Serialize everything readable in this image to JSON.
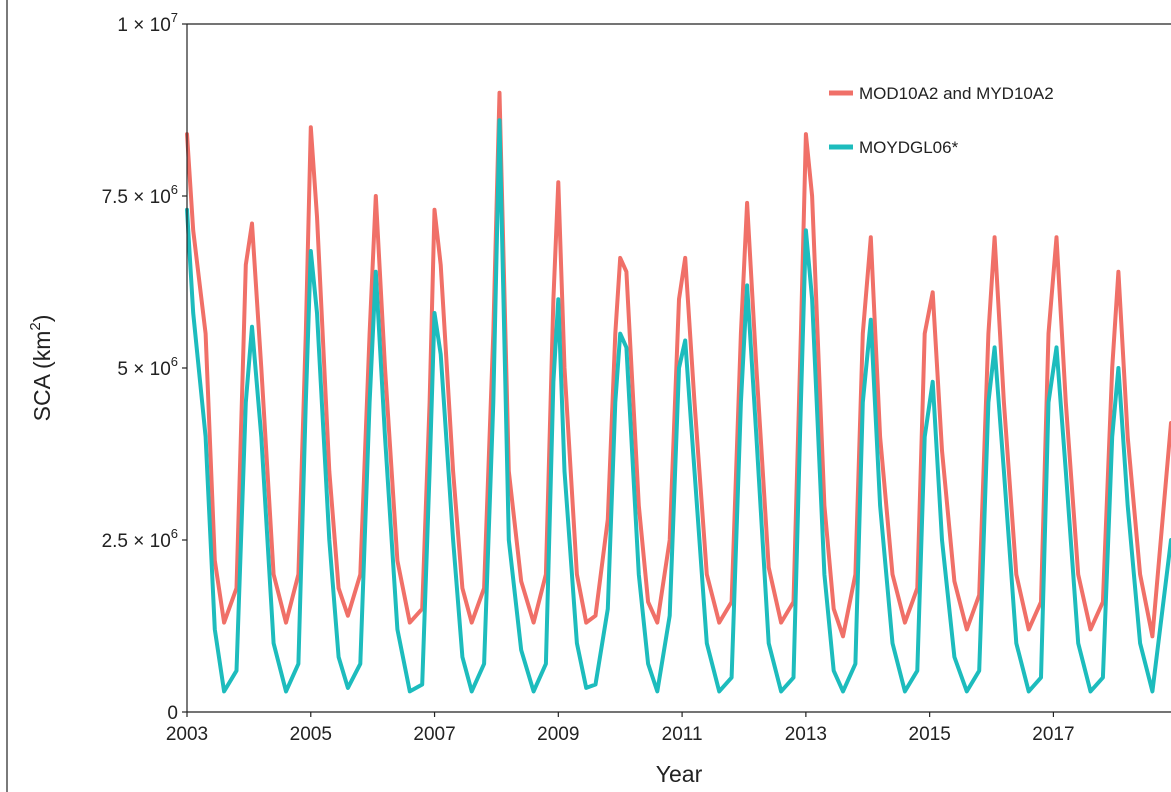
{
  "chart_data": {
    "type": "line",
    "xlabel": "Year",
    "ylabel": "SCA (km²)",
    "xlim": [
      2003,
      2018.9
    ],
    "ylim": [
      0,
      10000000
    ],
    "x_ticks": [
      2003,
      2005,
      2007,
      2009,
      2011,
      2013,
      2015,
      2017
    ],
    "x_tick_labels": [
      "2003",
      "2005",
      "2007",
      "2009",
      "2011",
      "2013",
      "2015",
      "2017"
    ],
    "y_ticks": [
      0,
      2500000,
      5000000,
      7500000,
      10000000
    ],
    "y_tick_labels": [
      {
        "text": "0",
        "mant": "",
        "exp": ""
      },
      {
        "text": "",
        "mant": "2.5 × 10",
        "exp": "6"
      },
      {
        "text": "",
        "mant": "5 × 10",
        "exp": "6"
      },
      {
        "text": "",
        "mant": "7.5 × 10",
        "exp": "6"
      },
      {
        "text": "",
        "mant": "1 × 10",
        "exp": "7"
      }
    ],
    "grid": false,
    "legend_position": "top-right",
    "colors": {
      "MOD10A2 and MYD10A2": "#f07068",
      "MOYDGL06*": "#1dbcbd"
    },
    "series": [
      {
        "name": "MOD10A2 and MYD10A2",
        "x": [
          2003.0,
          2003.1,
          2003.3,
          2003.45,
          2003.6,
          2003.8,
          2003.95,
          2004.05,
          2004.2,
          2004.4,
          2004.6,
          2004.8,
          2004.92,
          2005.0,
          2005.1,
          2005.3,
          2005.45,
          2005.6,
          2005.8,
          2005.95,
          2006.05,
          2006.2,
          2006.4,
          2006.6,
          2006.8,
          2006.92,
          2007.0,
          2007.1,
          2007.3,
          2007.45,
          2007.6,
          2007.8,
          2007.95,
          2008.05,
          2008.2,
          2008.4,
          2008.6,
          2008.8,
          2008.92,
          2009.0,
          2009.1,
          2009.3,
          2009.45,
          2009.6,
          2009.8,
          2009.92,
          2010.0,
          2010.1,
          2010.3,
          2010.45,
          2010.6,
          2010.8,
          2010.95,
          2011.05,
          2011.2,
          2011.4,
          2011.6,
          2011.8,
          2011.95,
          2012.05,
          2012.2,
          2012.4,
          2012.6,
          2012.8,
          2012.92,
          2013.0,
          2013.1,
          2013.3,
          2013.45,
          2013.6,
          2013.8,
          2013.92,
          2014.05,
          2014.2,
          2014.4,
          2014.6,
          2014.8,
          2014.92,
          2015.05,
          2015.2,
          2015.4,
          2015.6,
          2015.8,
          2015.95,
          2016.05,
          2016.2,
          2016.4,
          2016.6,
          2016.8,
          2016.92,
          2017.05,
          2017.2,
          2017.4,
          2017.6,
          2017.8,
          2017.95,
          2018.05,
          2018.2,
          2018.4,
          2018.6,
          2018.9
        ],
        "values": [
          8400000,
          7000000,
          5500000,
          2200000,
          1300000,
          1800000,
          6500000,
          7100000,
          5000000,
          2000000,
          1300000,
          2000000,
          5500000,
          8500000,
          7200000,
          3500000,
          1800000,
          1400000,
          2000000,
          5500000,
          7500000,
          5000000,
          2200000,
          1300000,
          1500000,
          4500000,
          7300000,
          6500000,
          3500000,
          1800000,
          1300000,
          1800000,
          5500000,
          9000000,
          3500000,
          1900000,
          1300000,
          2000000,
          6000000,
          7700000,
          5000000,
          2000000,
          1300000,
          1400000,
          2800000,
          5500000,
          6600000,
          6400000,
          3000000,
          1600000,
          1300000,
          2500000,
          6000000,
          6600000,
          4500000,
          2000000,
          1300000,
          1600000,
          5500000,
          7400000,
          5000000,
          2100000,
          1300000,
          1600000,
          5500000,
          8400000,
          7500000,
          3000000,
          1500000,
          1100000,
          2000000,
          5500000,
          6900000,
          4000000,
          2000000,
          1300000,
          1800000,
          5500000,
          6100000,
          3800000,
          1900000,
          1200000,
          1700000,
          5500000,
          6900000,
          4500000,
          2000000,
          1200000,
          1600000,
          5500000,
          6900000,
          4500000,
          2000000,
          1200000,
          1600000,
          5000000,
          6400000,
          4000000,
          2000000,
          1100000,
          4200000
        ]
      },
      {
        "name": "MOYDGL06*",
        "x": [
          2003.0,
          2003.1,
          2003.3,
          2003.45,
          2003.6,
          2003.8,
          2003.95,
          2004.05,
          2004.2,
          2004.4,
          2004.6,
          2004.8,
          2004.92,
          2005.0,
          2005.1,
          2005.3,
          2005.45,
          2005.6,
          2005.8,
          2005.95,
          2006.05,
          2006.2,
          2006.4,
          2006.6,
          2006.8,
          2006.92,
          2007.0,
          2007.1,
          2007.3,
          2007.45,
          2007.6,
          2007.8,
          2007.95,
          2008.05,
          2008.2,
          2008.4,
          2008.6,
          2008.8,
          2008.92,
          2009.0,
          2009.1,
          2009.3,
          2009.45,
          2009.6,
          2009.8,
          2009.92,
          2010.0,
          2010.1,
          2010.3,
          2010.45,
          2010.6,
          2010.8,
          2010.95,
          2011.05,
          2011.2,
          2011.4,
          2011.6,
          2011.8,
          2011.95,
          2012.05,
          2012.2,
          2012.4,
          2012.6,
          2012.8,
          2012.92,
          2013.0,
          2013.1,
          2013.3,
          2013.45,
          2013.6,
          2013.8,
          2013.92,
          2014.05,
          2014.2,
          2014.4,
          2014.6,
          2014.8,
          2014.92,
          2015.05,
          2015.2,
          2015.4,
          2015.6,
          2015.8,
          2015.95,
          2016.05,
          2016.2,
          2016.4,
          2016.6,
          2016.8,
          2016.92,
          2017.05,
          2017.2,
          2017.4,
          2017.6,
          2017.8,
          2017.95,
          2018.05,
          2018.2,
          2018.4,
          2018.6,
          2018.9
        ],
        "values": [
          7300000,
          5800000,
          4000000,
          1200000,
          300000,
          600000,
          4500000,
          5600000,
          4000000,
          1000000,
          300000,
          700000,
          4500000,
          6700000,
          5800000,
          2500000,
          800000,
          350000,
          700000,
          4500000,
          6400000,
          4000000,
          1200000,
          300000,
          400000,
          3500000,
          5800000,
          5200000,
          2500000,
          800000,
          300000,
          700000,
          4500000,
          8600000,
          2500000,
          900000,
          300000,
          700000,
          4800000,
          6000000,
          3500000,
          1000000,
          350000,
          400000,
          1500000,
          4500000,
          5500000,
          5300000,
          2000000,
          700000,
          300000,
          1400000,
          5000000,
          5400000,
          3500000,
          1000000,
          300000,
          500000,
          4500000,
          6200000,
          4000000,
          1000000,
          300000,
          500000,
          4500000,
          7000000,
          6000000,
          2000000,
          600000,
          300000,
          700000,
          4500000,
          5700000,
          3000000,
          1000000,
          300000,
          600000,
          4000000,
          4800000,
          2500000,
          800000,
          300000,
          600000,
          4500000,
          5300000,
          3500000,
          1000000,
          300000,
          500000,
          4500000,
          5300000,
          3500000,
          1000000,
          300000,
          500000,
          4000000,
          5000000,
          3000000,
          1000000,
          300000,
          2500000
        ]
      }
    ]
  }
}
